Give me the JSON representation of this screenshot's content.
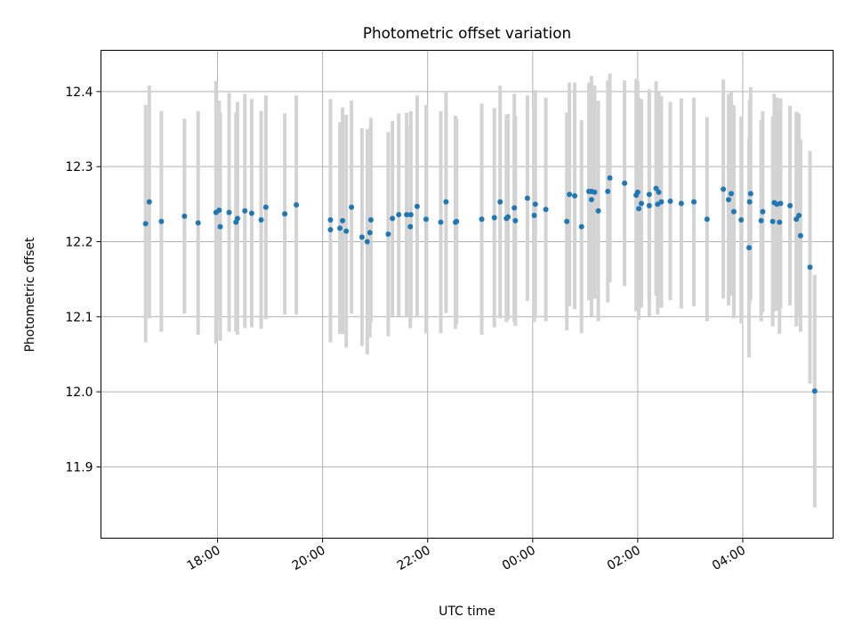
{
  "chart_data": {
    "type": "scatter",
    "title": "Photometric offset variation",
    "xlabel": "UTC time",
    "ylabel": "Photometric offset",
    "x_ticks": [
      "18:00",
      "20:00",
      "22:00",
      "00:00",
      "02:00",
      "04:00"
    ],
    "x_tick_hours": [
      18,
      20,
      22,
      24,
      26,
      28
    ],
    "x_range_hours": [
      15.78,
      29.72
    ],
    "y_ticks": [
      "11.9",
      "12.0",
      "12.1",
      "12.2",
      "12.3",
      "12.4"
    ],
    "y_tick_values": [
      11.9,
      12.0,
      12.1,
      12.2,
      12.3,
      12.4
    ],
    "ylim": [
      11.805,
      12.455
    ],
    "grid": true,
    "colors": {
      "point": "#1f77b4",
      "errorbar": "#d3d3d3",
      "grid": "#b0b0b0"
    },
    "series": [
      {
        "x_hours": [
          16.63,
          16.7,
          16.93,
          17.37,
          17.63,
          17.97,
          18.05,
          18.03,
          18.22,
          18.35,
          18.38,
          18.52,
          18.65,
          18.83,
          18.92,
          19.28,
          19.5,
          20.15,
          20.15,
          20.33,
          20.38,
          20.45,
          20.55,
          20.75,
          20.85,
          20.9,
          20.92,
          21.25,
          21.33,
          21.45,
          21.6,
          21.67,
          21.68,
          21.8,
          21.97,
          22.25,
          22.35,
          22.53,
          22.55,
          23.03,
          23.27,
          23.38,
          23.5,
          23.53,
          23.65,
          23.67,
          23.9,
          24.03,
          24.05,
          24.25,
          24.65,
          24.7,
          24.8,
          24.93,
          25.07,
          25.12,
          25.12,
          25.18,
          25.25,
          25.43,
          25.47,
          25.75,
          25.97,
          26.0,
          26.02,
          26.07,
          26.22,
          26.22,
          26.35,
          26.38,
          26.4,
          26.45,
          26.62,
          26.83,
          27.07,
          27.32,
          27.63,
          27.73,
          27.78,
          27.83,
          27.97,
          28.12,
          28.13,
          28.15,
          28.35,
          28.38,
          28.57,
          28.6,
          28.65,
          28.7,
          28.72,
          28.9,
          29.02,
          29.07,
          29.1,
          29.28,
          29.37
        ],
        "y_values": [
          12.224,
          12.253,
          12.227,
          12.234,
          12.225,
          12.239,
          12.22,
          12.242,
          12.239,
          12.226,
          12.231,
          12.241,
          12.238,
          12.229,
          12.246,
          12.237,
          12.249,
          12.216,
          12.229,
          12.218,
          12.228,
          12.214,
          12.246,
          12.206,
          12.2,
          12.212,
          12.229,
          12.21,
          12.231,
          12.236,
          12.236,
          12.22,
          12.236,
          12.247,
          12.23,
          12.226,
          12.253,
          12.226,
          12.227,
          12.23,
          12.232,
          12.253,
          12.231,
          12.233,
          12.245,
          12.228,
          12.258,
          12.235,
          12.25,
          12.243,
          12.227,
          12.263,
          12.261,
          12.22,
          12.267,
          12.267,
          12.256,
          12.266,
          12.241,
          12.267,
          12.285,
          12.278,
          12.262,
          12.266,
          12.244,
          12.251,
          12.248,
          12.263,
          12.271,
          12.25,
          12.266,
          12.253,
          12.254,
          12.251,
          12.253,
          12.23,
          12.27,
          12.256,
          12.264,
          12.24,
          12.229,
          12.192,
          12.253,
          12.264,
          12.228,
          12.24,
          12.227,
          12.252,
          12.25,
          12.226,
          12.251,
          12.248,
          12.23,
          12.235,
          12.208,
          12.166,
          12.001
        ],
        "y_err": [
          0.158,
          0.155,
          0.147,
          0.13,
          0.149,
          0.175,
          0.152,
          0.146,
          0.159,
          0.146,
          0.155,
          0.156,
          0.152,
          0.145,
          0.149,
          0.134,
          0.146,
          0.15,
          0.161,
          0.141,
          0.151,
          0.155,
          0.142,
          0.145,
          0.15,
          0.14,
          0.136,
          0.136,
          0.13,
          0.135,
          0.136,
          0.135,
          0.138,
          0.148,
          0.152,
          0.148,
          0.148,
          0.142,
          0.137,
          0.154,
          0.146,
          0.155,
          0.138,
          0.137,
          0.152,
          0.14,
          0.137,
          0.142,
          0.152,
          0.149,
          0.145,
          0.149,
          0.151,
          0.142,
          0.145,
          0.154,
          0.155,
          0.142,
          0.147,
          0.148,
          0.139,
          0.137,
          0.155,
          0.148,
          0.148,
          0.139,
          0.147,
          0.14,
          0.143,
          0.147,
          0.135,
          0.141,
          0.132,
          0.14,
          0.139,
          0.136,
          0.146,
          0.141,
          0.136,
          0.142,
          0.138,
          0.146,
          0.136,
          0.142,
          0.134,
          0.134,
          0.14,
          0.145,
          0.142,
          0.149,
          0.14,
          0.133,
          0.143,
          0.136,
          0.128,
          0.155,
          0.155
        ]
      }
    ]
  }
}
